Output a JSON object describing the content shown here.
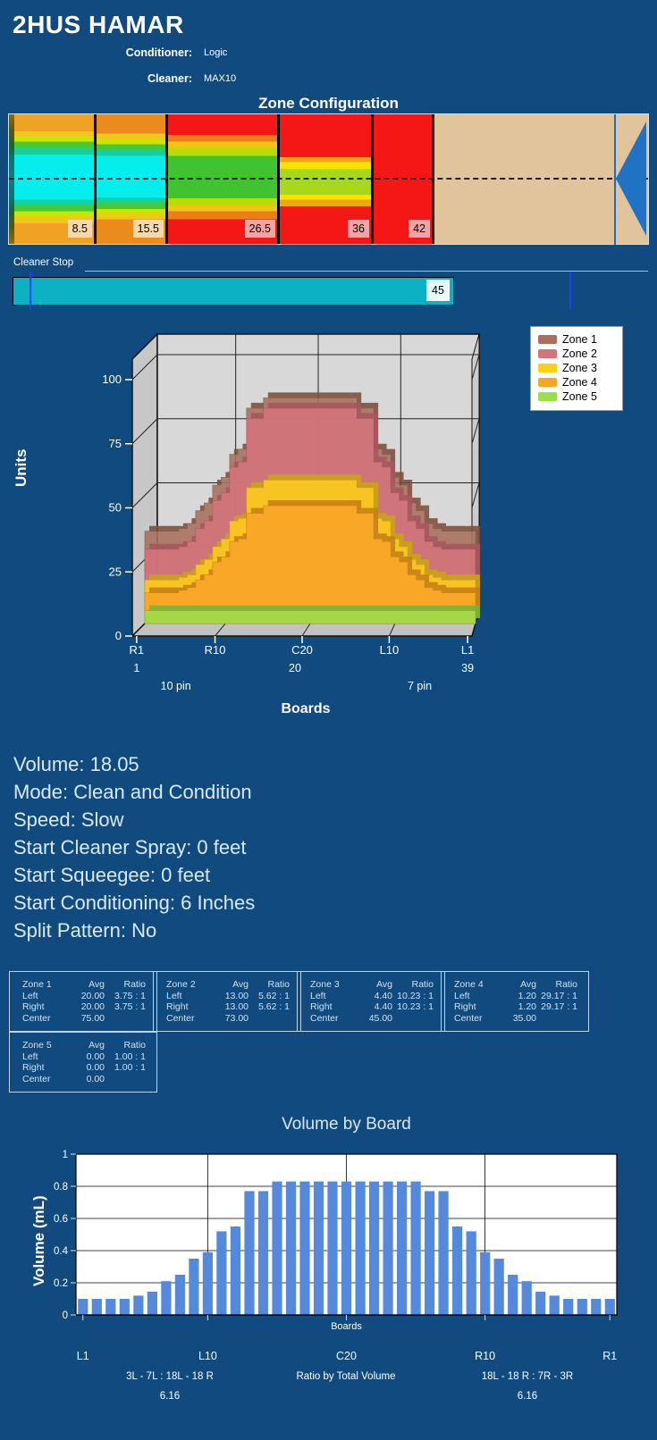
{
  "header": {
    "title": "2HUS HAMAR",
    "conditioner_label": "Conditioner:",
    "conditioner_value": "Logic",
    "cleaner_label": "Cleaner:",
    "cleaner_value": "MAX10"
  },
  "zone_config": {
    "title": "Zone Configuration",
    "markers": [
      "8.5",
      "15.5",
      "26.5",
      "36",
      "42"
    ]
  },
  "cleaner_stop": {
    "label": "Cleaner Stop",
    "value": "45"
  },
  "info_lines": [
    "Volume: 18.05",
    "Mode: Clean and Condition",
    "Speed: Slow",
    "Start Cleaner Spray: 0 feet",
    "Start Squeegee: 0 feet",
    "Start Conditioning: 6 Inches",
    "Split Pattern: No"
  ],
  "zone_tables": [
    {
      "name": "Zone 1",
      "avg_header": "Avg",
      "ratio_header": "Ratio",
      "rows": [
        [
          "Left",
          "20.00",
          "3.75 : 1"
        ],
        [
          "Right",
          "20.00",
          "3.75 : 1"
        ],
        [
          "Center",
          "75.00",
          ""
        ]
      ]
    },
    {
      "name": "Zone 2",
      "avg_header": "Avg",
      "ratio_header": "Ratio",
      "rows": [
        [
          "Left",
          "13.00",
          "5.62 : 1"
        ],
        [
          "Right",
          "13.00",
          "5.62 : 1"
        ],
        [
          "Center",
          "73.00",
          ""
        ]
      ]
    },
    {
      "name": "Zone 3",
      "avg_header": "Avg",
      "ratio_header": "Ratio",
      "rows": [
        [
          "Left",
          "4.40",
          "10.23 : 1"
        ],
        [
          "Right",
          "4.40",
          "10.23 : 1"
        ],
        [
          "Center",
          "45.00",
          ""
        ]
      ]
    },
    {
      "name": "Zone 4",
      "avg_header": "Avg",
      "ratio_header": "Ratio",
      "rows": [
        [
          "Left",
          "1.20",
          "29.17 : 1"
        ],
        [
          "Right",
          "1.20",
          "29.17 : 1"
        ],
        [
          "Center",
          "35.00",
          ""
        ]
      ]
    },
    {
      "name": "Zone 5",
      "avg_header": "Avg",
      "ratio_header": "Ratio",
      "rows": [
        [
          "Left",
          "0.00",
          "1.00 : 1"
        ],
        [
          "Right",
          "0.00",
          "1.00 : 1"
        ],
        [
          "Center",
          "0.00",
          ""
        ]
      ]
    }
  ],
  "colors": {
    "background": "#114a7e",
    "bar_blue": "#5589dc",
    "slider_teal": "#0cb2c4",
    "tan": "#e2c49c",
    "arrow_blue": "#1f72c4",
    "marker_tan": "#f5d9a8",
    "marker_pink": "#f2a3a3"
  },
  "chart_data": [
    {
      "type": "area",
      "title": "",
      "xlabel": "Boards",
      "ylabel": "Units",
      "ylim": [
        0,
        100
      ],
      "yticks": [
        0,
        25,
        50,
        75,
        100
      ],
      "xticks": [
        {
          "label": "R1",
          "board": 1
        },
        {
          "label": "R10",
          "board": 10
        },
        {
          "label": "C20",
          "board": 20
        },
        {
          "label": "L10",
          "board": 30
        },
        {
          "label": "L1",
          "board": 39
        }
      ],
      "xticks_row2": [
        {
          "label": "1",
          "board": 1
        },
        {
          "label": "20",
          "board": 20
        },
        {
          "label": "39",
          "board": 39
        }
      ],
      "pin_labels": [
        {
          "label": "10 pin",
          "board": 5.5
        },
        {
          "label": "7 pin",
          "board": 33.5
        }
      ],
      "legend_position": "top-right",
      "grid": true,
      "series": [
        {
          "name": "Zone 1",
          "color": "#a9705c",
          "top_color": "#7d4e3c",
          "values": [
            36,
            36,
            36,
            36,
            37,
            39,
            44,
            47,
            54,
            57,
            66,
            68,
            84,
            84,
            88,
            88,
            88,
            88,
            88,
            88,
            88,
            88,
            88,
            88,
            88,
            84,
            84,
            68,
            66,
            57,
            54,
            47,
            44,
            39,
            37,
            36,
            36,
            36,
            36
          ]
        },
        {
          "name": "Zone 2",
          "color": "#d4737b",
          "top_color": "#a9565e",
          "values": [
            29,
            29,
            29,
            29,
            30,
            32,
            37,
            40,
            48,
            51,
            61,
            63,
            80,
            80,
            84,
            84,
            84,
            84,
            84,
            84,
            84,
            84,
            84,
            84,
            84,
            80,
            80,
            63,
            61,
            51,
            48,
            40,
            37,
            32,
            30,
            29,
            29,
            29,
            29
          ]
        },
        {
          "name": "Zone 3",
          "color": "#fdd017",
          "top_color": "#caa512",
          "values": [
            17,
            17,
            17,
            17,
            18,
            19,
            23,
            25,
            30,
            33,
            40,
            41,
            53,
            53,
            56,
            56,
            56,
            56,
            56,
            56,
            56,
            56,
            56,
            56,
            56,
            53,
            53,
            41,
            40,
            33,
            30,
            25,
            23,
            19,
            18,
            17,
            17,
            17,
            17
          ]
        },
        {
          "name": "Zone 4",
          "color": "#faa427",
          "top_color": "#c57f16",
          "values": [
            12,
            12,
            12,
            12,
            13,
            14,
            17,
            19,
            24,
            26,
            32,
            33,
            43,
            43,
            46,
            46,
            46,
            46,
            46,
            46,
            46,
            46,
            46,
            46,
            46,
            43,
            43,
            33,
            32,
            26,
            24,
            19,
            17,
            14,
            13,
            12,
            12,
            12,
            12
          ]
        },
        {
          "name": "Zone 5",
          "color": "#9ade4b",
          "top_color": "#76b437",
          "values": [
            5,
            5,
            5,
            5,
            5,
            5,
            5,
            5,
            5,
            5,
            5,
            5,
            5,
            5,
            5,
            5,
            5,
            5,
            5,
            5,
            5,
            5,
            5,
            5,
            5,
            5,
            5,
            5,
            5,
            5,
            5,
            5,
            5,
            5,
            5,
            5,
            5,
            5,
            5
          ]
        }
      ]
    },
    {
      "type": "bar",
      "title": "Volume by Board",
      "xlabel": "Boards",
      "ylabel": "Volume (mL)",
      "ylim": [
        0,
        1
      ],
      "yticks": [
        "0",
        "0.2",
        "0.4",
        "0.6",
        "0.8",
        "1"
      ],
      "grid": true,
      "x_axis_labels": [
        {
          "label": "L1",
          "board": 1
        },
        {
          "label": "L10",
          "board": 10
        },
        {
          "label": "C20",
          "board": 20
        },
        {
          "label": "R10",
          "board": 30
        },
        {
          "label": "R1",
          "board": 39
        }
      ],
      "annotations": {
        "left": "3L - 7L : 18L - 18 R",
        "left_value": "6.16",
        "center": "Ratio by Total Volume",
        "right": "18L - 18 R : 7R - 3R",
        "right_value": "6.16"
      },
      "bar_color": "#5589dc",
      "values": [
        0.1,
        0.1,
        0.1,
        0.1,
        0.12,
        0.145,
        0.21,
        0.25,
        0.35,
        0.39,
        0.52,
        0.55,
        0.77,
        0.77,
        0.83,
        0.83,
        0.83,
        0.83,
        0.83,
        0.83,
        0.83,
        0.83,
        0.83,
        0.83,
        0.83,
        0.77,
        0.77,
        0.55,
        0.52,
        0.39,
        0.35,
        0.25,
        0.21,
        0.145,
        0.12,
        0.1,
        0.1,
        0.1,
        0.1
      ]
    }
  ]
}
